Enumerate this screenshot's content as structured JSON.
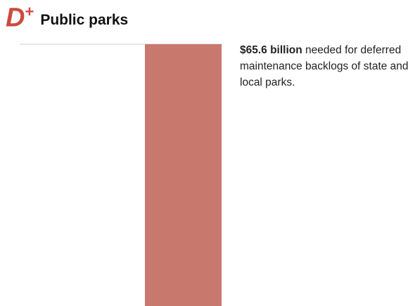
{
  "header": {
    "grade": "D",
    "grade_modifier": "+",
    "title": "Public parks"
  },
  "annotation": {
    "amount": "$65.6 billion",
    "text": " needed for deferred maintenance backlogs of state and local parks."
  },
  "colors": {
    "grade": "#cc4a40",
    "bar": "#c8786c",
    "reference_line": "#cfcfcf"
  },
  "chart_data": {
    "type": "bar",
    "categories": [
      ""
    ],
    "values": [
      65.6
    ],
    "unit": "billion USD",
    "title": "",
    "xlabel": "",
    "ylabel": "",
    "grid": false,
    "legend": "none"
  }
}
